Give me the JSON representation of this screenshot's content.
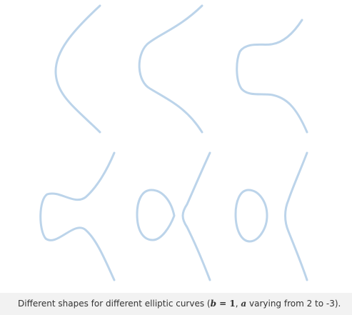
{
  "figure": {
    "curve_color": "#bcd4ea",
    "caption_background": "#f2f2f2",
    "curves": [
      {
        "position": "top-left",
        "shape": "single smooth component"
      },
      {
        "position": "top-middle",
        "shape": "single component with wider bend"
      },
      {
        "position": "top-right",
        "shape": "single component with pronounced bulge"
      },
      {
        "position": "bottom-left",
        "shape": "single component with self-touching (singular) point"
      },
      {
        "position": "bottom-middle",
        "shape": "two components: oval and unbounded branch"
      },
      {
        "position": "bottom-right",
        "shape": "two components: separated oval and unbounded branch"
      }
    ]
  },
  "caption": {
    "prefix": "Different shapes for different elliptic curves (",
    "b_var": "b",
    "b_eq": " = 1",
    "comma": ", ",
    "a_var": "a",
    "suffix": " varying from 2 to -3)."
  }
}
